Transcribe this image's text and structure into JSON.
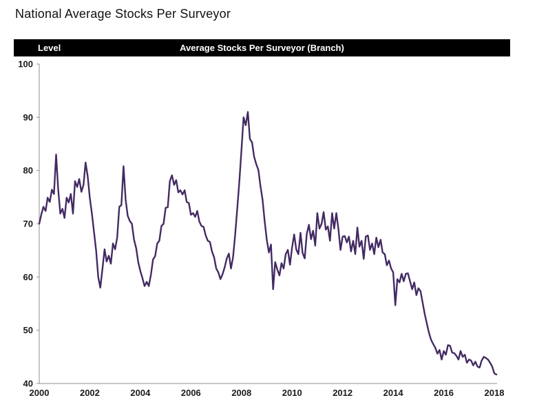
{
  "page": {
    "title": "National Average Stocks Per Surveyor"
  },
  "panel": {
    "header_left": "Level",
    "header_center": "Average Stocks Per Surveyor (Branch)"
  },
  "colors": {
    "line": "#432a63",
    "axis": "#8e8e8e",
    "tick_text": "#1a1a1a",
    "header_bg": "#000000",
    "header_text": "#ffffff"
  },
  "chart_data": {
    "type": "line",
    "title": "Average Stocks Per Surveyor (Branch)",
    "ylabel": "Level",
    "xlabel": "",
    "grid": false,
    "legend": "none",
    "frequency": "monthly",
    "x_start": {
      "year": 2000,
      "month": 1
    },
    "x_end": {
      "year": 2018,
      "month": 2
    },
    "x_tick_labels": [
      "2000",
      "2002",
      "2004",
      "2006",
      "2008",
      "2010",
      "2012",
      "2014",
      "2016",
      "2018"
    ],
    "y_ticks": [
      100,
      90,
      80,
      70,
      60,
      50,
      40
    ],
    "ylim": [
      40,
      100
    ],
    "series": [
      {
        "name": "Average stocks per surveyor (branch)",
        "values": [
          70.0,
          71.8,
          73.2,
          72.4,
          74.9,
          74.1,
          76.4,
          75.6,
          83.0,
          76.5,
          71.9,
          72.8,
          71.1,
          74.9,
          74.0,
          75.6,
          71.9,
          78.0,
          76.9,
          78.4,
          76.0,
          77.3,
          81.5,
          78.9,
          74.9,
          71.9,
          68.4,
          65.0,
          60.0,
          58.0,
          61.5,
          65.2,
          62.9,
          64.0,
          62.5,
          66.3,
          65.2,
          67.4,
          73.2,
          73.5,
          80.8,
          74.5,
          71.5,
          70.5,
          70.0,
          67.0,
          65.4,
          62.8,
          61.1,
          59.8,
          58.3,
          59.1,
          58.3,
          60.4,
          63.3,
          63.9,
          66.3,
          66.8,
          69.6,
          70.0,
          73.0,
          73.1,
          78.0,
          79.1,
          77.3,
          78.2,
          75.9,
          76.3,
          75.5,
          76.3,
          74.1,
          73.9,
          71.7,
          72.0,
          71.3,
          72.4,
          70.4,
          69.6,
          69.4,
          67.8,
          66.8,
          66.6,
          64.8,
          63.7,
          61.6,
          60.9,
          59.6,
          60.5,
          61.8,
          63.5,
          64.4,
          61.6,
          63.7,
          68.0,
          73.0,
          78.0,
          84.0,
          90.0,
          88.5,
          91.0,
          85.9,
          85.3,
          82.6,
          81.2,
          80.1,
          77.1,
          74.5,
          70.5,
          67.0,
          64.6,
          66.1,
          57.7,
          62.8,
          61.4,
          60.3,
          62.6,
          61.6,
          64.3,
          65.1,
          62.3,
          65.5,
          68.0,
          65.2,
          64.3,
          68.3,
          64.5,
          63.5,
          68.1,
          69.8,
          67.1,
          68.7,
          65.9,
          72.0,
          69.1,
          70.0,
          72.2,
          68.9,
          69.5,
          66.8,
          72.0,
          69.1,
          72.0,
          69.1,
          65.1,
          67.6,
          67.7,
          66.5,
          67.6,
          64.8,
          66.8,
          64.3,
          69.3,
          65.7,
          66.8,
          63.4,
          67.6,
          67.8,
          65.1,
          66.3,
          64.3,
          67.4,
          65.6,
          67.0,
          64.6,
          64.3,
          62.2,
          63.1,
          61.6,
          60.9,
          54.7,
          59.6,
          59.0,
          60.6,
          59.2,
          60.6,
          60.7,
          59.2,
          57.7,
          59.0,
          56.6,
          57.9,
          57.3,
          55.1,
          53.0,
          51.2,
          49.5,
          48.2,
          47.4,
          46.7,
          45.6,
          46.3,
          44.5,
          46.1,
          45.4,
          47.2,
          47.1,
          45.8,
          45.7,
          45.2,
          44.5,
          46.1,
          45.0,
          45.4,
          43.9,
          44.5,
          44.3,
          43.4,
          44.1,
          43.2,
          43.0,
          44.3,
          45.0,
          44.8,
          44.5,
          43.9,
          43.2,
          41.9,
          41.7
        ]
      }
    ]
  }
}
